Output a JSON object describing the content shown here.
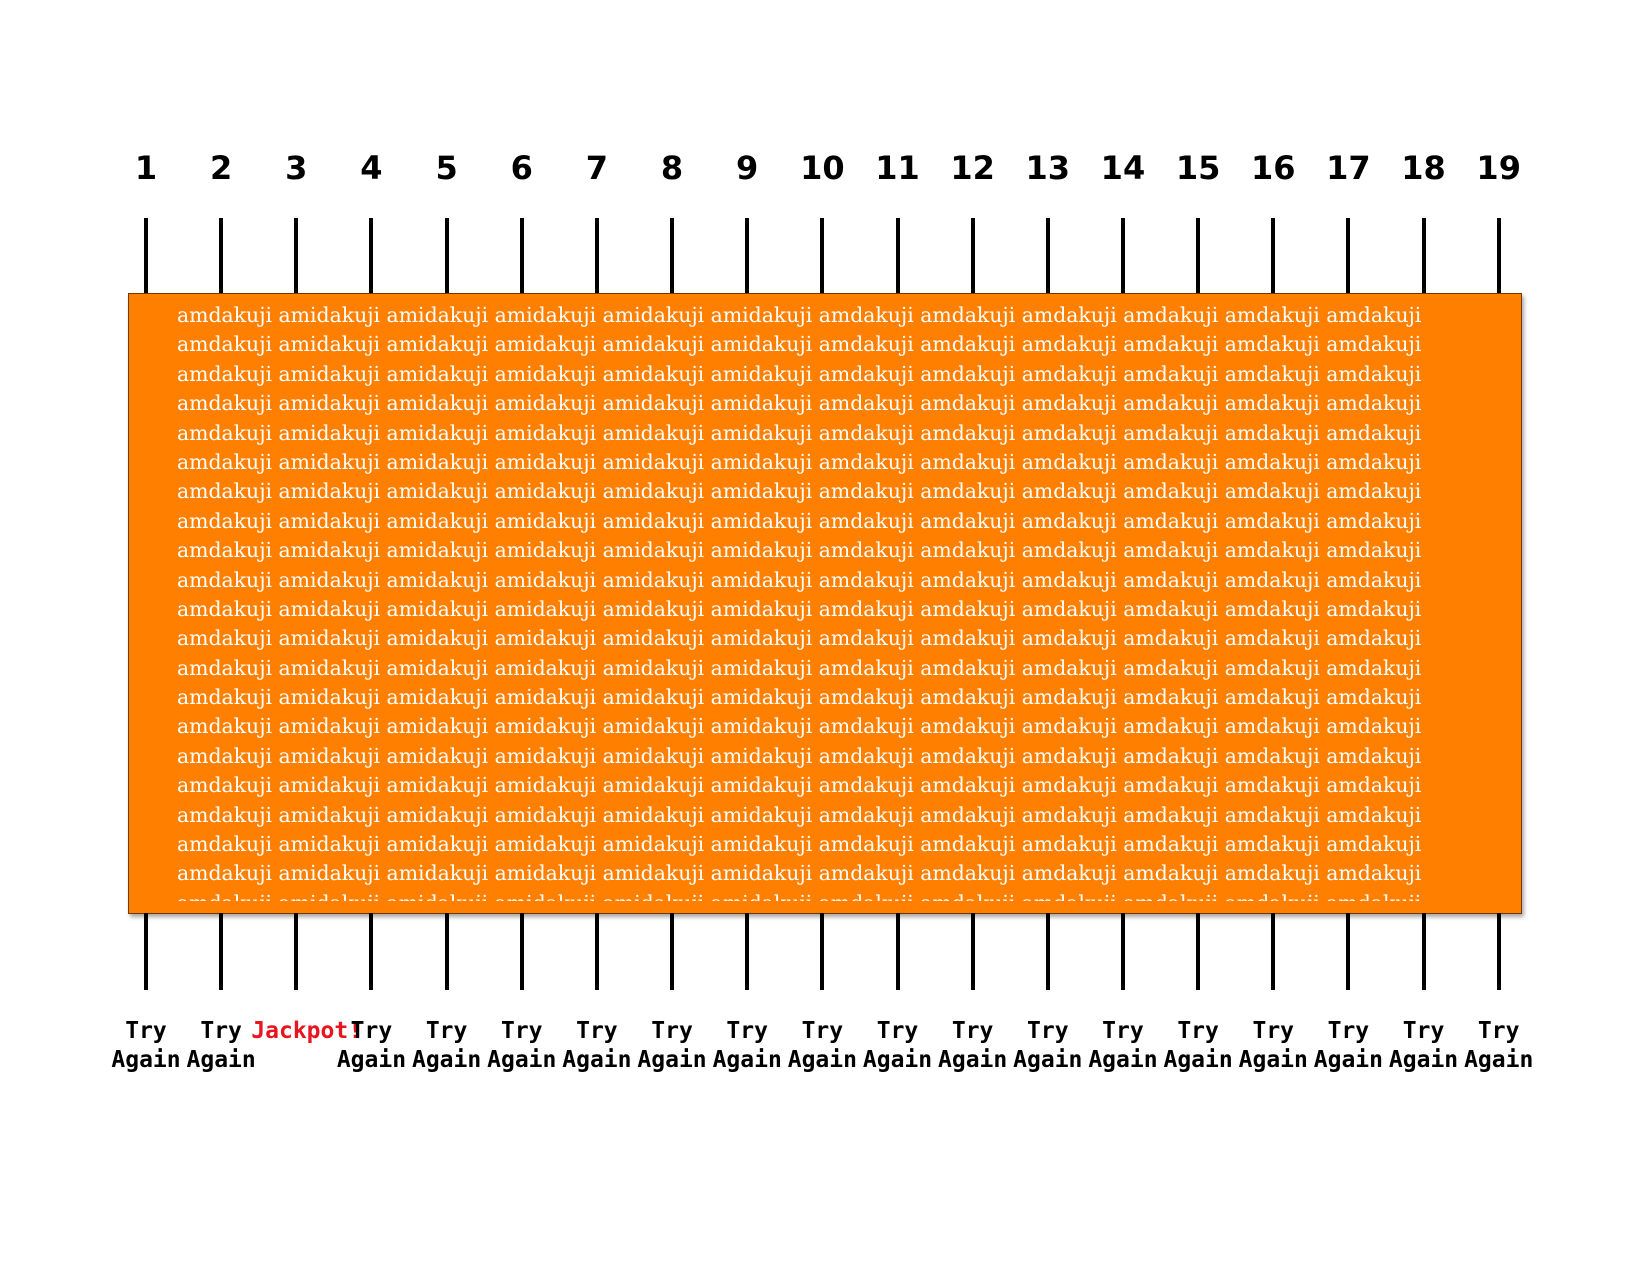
{
  "columns": [
    "1",
    "2",
    "3",
    "4",
    "5",
    "6",
    "7",
    "8",
    "9",
    "10",
    "11",
    "12",
    "13",
    "14",
    "15",
    "16",
    "17",
    "18",
    "19"
  ],
  "cover": {
    "color": "#ff7f00",
    "text_color": "#ffffff",
    "row_words": [
      "amdakuji",
      "amidakuji",
      "amidakuji",
      "amidakuji",
      "amidakuji",
      "amidakuji",
      "amdakuji",
      "amdakuji",
      "amdakuji",
      "amdakuji",
      "amdakuji",
      "amdakuji"
    ],
    "row_count": 21
  },
  "results": [
    {
      "line1": "Try",
      "line2": "Again"
    },
    {
      "line1": "Try",
      "line2": "Again"
    },
    {
      "line1": "Jackpot!",
      "line2": "",
      "highlight": true
    },
    {
      "line1": "Try",
      "line2": "Again"
    },
    {
      "line1": "Try",
      "line2": "Again"
    },
    {
      "line1": "Try",
      "line2": "Again"
    },
    {
      "line1": "Try",
      "line2": "Again"
    },
    {
      "line1": "Try",
      "line2": "Again"
    },
    {
      "line1": "Try",
      "line2": "Again"
    },
    {
      "line1": "Try",
      "line2": "Again"
    },
    {
      "line1": "Try",
      "line2": "Again"
    },
    {
      "line1": "Try",
      "line2": "Again"
    },
    {
      "line1": "Try",
      "line2": "Again"
    },
    {
      "line1": "Try",
      "line2": "Again"
    },
    {
      "line1": "Try",
      "line2": "Again"
    },
    {
      "line1": "Try",
      "line2": "Again"
    },
    {
      "line1": "Try",
      "line2": "Again"
    },
    {
      "line1": "Try",
      "line2": "Again"
    },
    {
      "line1": "Try",
      "line2": "Again"
    }
  ],
  "colors": {
    "jackpot": "#e8141e",
    "line": "#000000"
  }
}
